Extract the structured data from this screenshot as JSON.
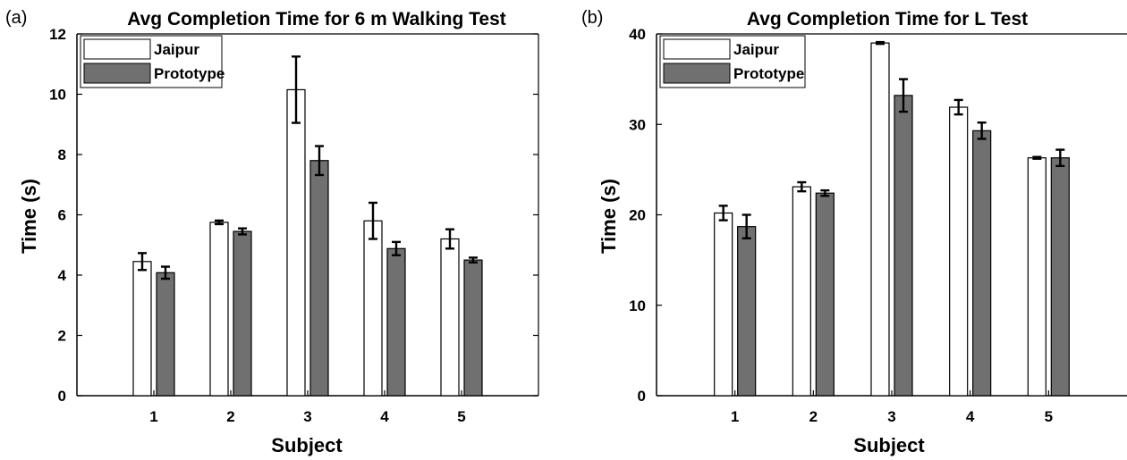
{
  "colors": {
    "jaipur_fill": "#ffffff",
    "prototype_fill": "#707070",
    "axis": "#000000"
  },
  "chart_data": [
    {
      "type": "bar",
      "panel_label": "(a)",
      "title": "Avg Completion Time for 6 m Walking Test",
      "xlabel": "Subject",
      "ylabel": "Time (s)",
      "categories": [
        "1",
        "2",
        "3",
        "4",
        "5"
      ],
      "ylim": [
        0,
        12
      ],
      "yticks": [
        0,
        2,
        4,
        6,
        8,
        10,
        12
      ],
      "grid": false,
      "legend_position": "top-left",
      "series": [
        {
          "name": "Jaipur",
          "values": [
            4.45,
            5.75,
            10.15,
            5.8,
            5.2
          ],
          "errors": [
            0.28,
            0.06,
            1.1,
            0.6,
            0.32
          ]
        },
        {
          "name": "Prototype",
          "values": [
            4.08,
            5.45,
            7.8,
            4.88,
            4.5
          ],
          "errors": [
            0.2,
            0.1,
            0.48,
            0.22,
            0.08
          ]
        }
      ]
    },
    {
      "type": "bar",
      "panel_label": "(b)",
      "title": "Avg Completion Time for L Test",
      "xlabel": "Subject",
      "ylabel": "Time (s)",
      "categories": [
        "1",
        "2",
        "3",
        "4",
        "5"
      ],
      "ylim": [
        0,
        40
      ],
      "yticks": [
        0,
        10,
        20,
        30,
        40
      ],
      "grid": false,
      "legend_position": "top-left",
      "series": [
        {
          "name": "Jaipur",
          "values": [
            20.2,
            23.1,
            39.0,
            31.9,
            26.3
          ],
          "errors": [
            0.8,
            0.5,
            0.1,
            0.8,
            0.1
          ]
        },
        {
          "name": "Prototype",
          "values": [
            18.7,
            22.4,
            33.2,
            29.3,
            26.3
          ],
          "errors": [
            1.3,
            0.3,
            1.8,
            0.9,
            0.9
          ]
        }
      ]
    }
  ]
}
